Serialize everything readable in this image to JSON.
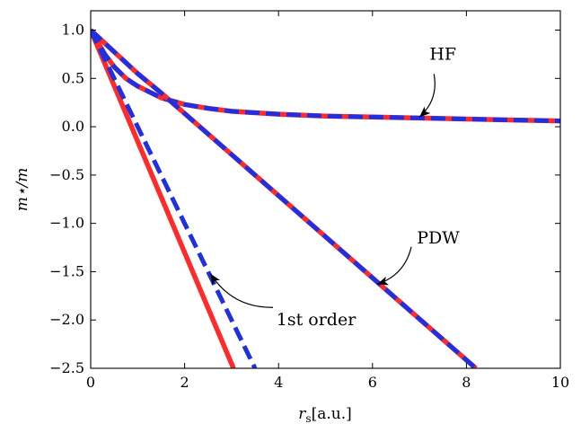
{
  "chart_data": {
    "type": "line",
    "xlim": [
      0,
      10
    ],
    "ylim": [
      -2.5,
      1.2
    ],
    "xticks": [
      0,
      2,
      4,
      6,
      8,
      10
    ],
    "xtick_labels": [
      "0",
      "2",
      "4",
      "6",
      "8",
      "10"
    ],
    "yticks": [
      1.0,
      0.5,
      0.0,
      -0.5,
      -1.0,
      -1.5,
      -2.0,
      -2.5
    ],
    "ytick_labels": [
      "1.0",
      "0.5",
      "0.0",
      "−0.5",
      "−1.0",
      "−1.5",
      "−2.0",
      "−2.5"
    ],
    "xlabel": "r",
    "xlabel_sub": "s",
    "xlabel_unit": "[a.u.]",
    "ylabel": "m⋆/m",
    "grid": false,
    "series": [
      {
        "color": "#ff2a2a",
        "style": "solid",
        "x": [
          0,
          0.3,
          0.5,
          0.75,
          1.0,
          1.5,
          2.0,
          2.5,
          3.0,
          4.0,
          5.0,
          6.0,
          7.0,
          8.0,
          9.0,
          10.0
        ],
        "y": [
          1.0,
          0.75,
          0.62,
          0.5,
          0.42,
          0.3,
          0.23,
          0.19,
          0.16,
          0.13,
          0.11,
          0.1,
          0.09,
          0.08,
          0.07,
          0.06
        ]
      },
      {
        "color": "#2030e0",
        "style": "dashed",
        "x": [
          0,
          0.3,
          0.5,
          0.75,
          1.0,
          1.5,
          2.0,
          2.5,
          3.0,
          4.0,
          5.0,
          6.0,
          7.0,
          8.0,
          9.0,
          10.0
        ],
        "y": [
          1.0,
          0.75,
          0.62,
          0.5,
          0.42,
          0.3,
          0.23,
          0.19,
          0.16,
          0.13,
          0.11,
          0.1,
          0.09,
          0.08,
          0.07,
          0.06
        ]
      },
      {
        "color": "#ff2a2a",
        "style": "solid",
        "x": [
          0,
          1.0,
          1.5,
          8.2
        ],
        "y": [
          1.0,
          0.55,
          0.35,
          -2.5
        ]
      },
      {
        "color": "#2030e0",
        "style": "dashed",
        "x": [
          0,
          1.0,
          1.5,
          8.2
        ],
        "y": [
          1.0,
          0.55,
          0.35,
          -2.5
        ]
      },
      {
        "color": "#ff2a2a",
        "style": "solid",
        "x": [
          0,
          3.04
        ],
        "y": [
          1.0,
          -2.5
        ]
      },
      {
        "color": "#2030e0",
        "style": "dashed",
        "x": [
          0,
          3.5
        ],
        "y": [
          1.0,
          -2.5
        ]
      }
    ],
    "annotations": [
      {
        "text": "HF",
        "text_x": 7.5,
        "text_y": 0.75,
        "arrow_to": [
          7.0,
          0.1
        ]
      },
      {
        "text": "PDW",
        "text_x": 7.4,
        "text_y": -1.15,
        "arrow_to": [
          6.1,
          -1.63
        ]
      },
      {
        "text": "1st order",
        "text_x": 4.8,
        "text_y": -2.0,
        "arrow_to": [
          2.55,
          -1.52
        ]
      }
    ]
  }
}
